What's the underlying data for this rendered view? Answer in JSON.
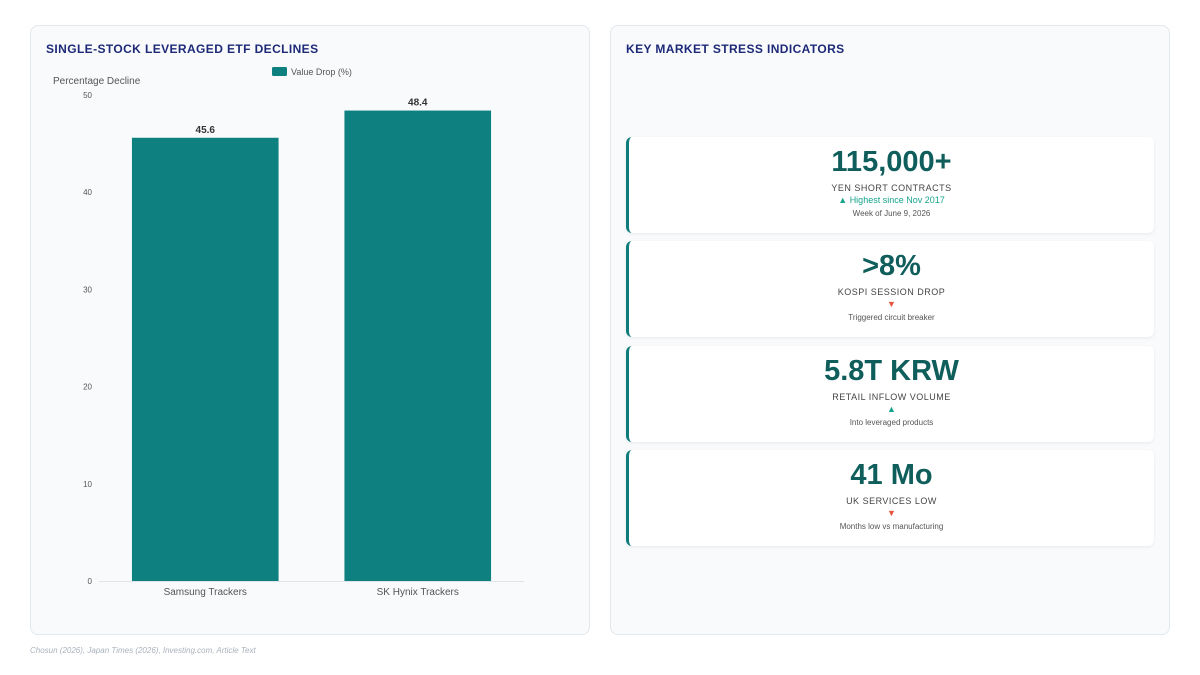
{
  "left_panel": {
    "title": "SINGLE-STOCK LEVERAGED ETF DECLINES"
  },
  "right_panel": {
    "title": "KEY MARKET STRESS INDICATORS"
  },
  "chart_data": {
    "type": "bar",
    "categories": [
      "Samsung Trackers",
      "SK Hynix Trackers"
    ],
    "series": [
      {
        "name": "Value Drop (%)",
        "values": [
          45.6,
          48.4
        ]
      }
    ],
    "ylabel": "Percentage Decline",
    "xlabel": "",
    "ylim": [
      0,
      50
    ],
    "yticks": [
      0,
      10,
      20,
      30,
      40,
      50
    ],
    "data_labels": [
      "45.6",
      "48.4"
    ],
    "legend_position": "top-center",
    "grid": false,
    "bar_color": "#0e8080"
  },
  "indicators": [
    {
      "value": "115,000+",
      "label": "YEN SHORT CONTRACTS",
      "trend": "up",
      "trend_icon": "▲",
      "trend_text": "Highest since Nov 2017",
      "sub": "Week of June 9, 2026"
    },
    {
      "value": ">8%",
      "label": "KOSPI SESSION DROP",
      "trend": "down",
      "trend_icon": "▼",
      "trend_text": "",
      "sub": "Triggered circuit breaker"
    },
    {
      "value": "5.8T KRW",
      "label": "RETAIL INFLOW VOLUME",
      "trend": "up",
      "trend_icon": "▲",
      "trend_text": "",
      "sub": "Into leveraged products"
    },
    {
      "value": "41 Mo",
      "label": "UK SERVICES LOW",
      "trend": "down",
      "trend_icon": "▼",
      "trend_text": "",
      "sub": "Months low vs manufacturing"
    }
  ],
  "footer": {
    "source": "Chosun (2026), Japan Times (2026), Investing.com, Article Text"
  },
  "colors": {
    "accent": "#0e7c7b",
    "title": "#1e2a78",
    "up": "#14a38b",
    "down": "#e5533d"
  }
}
